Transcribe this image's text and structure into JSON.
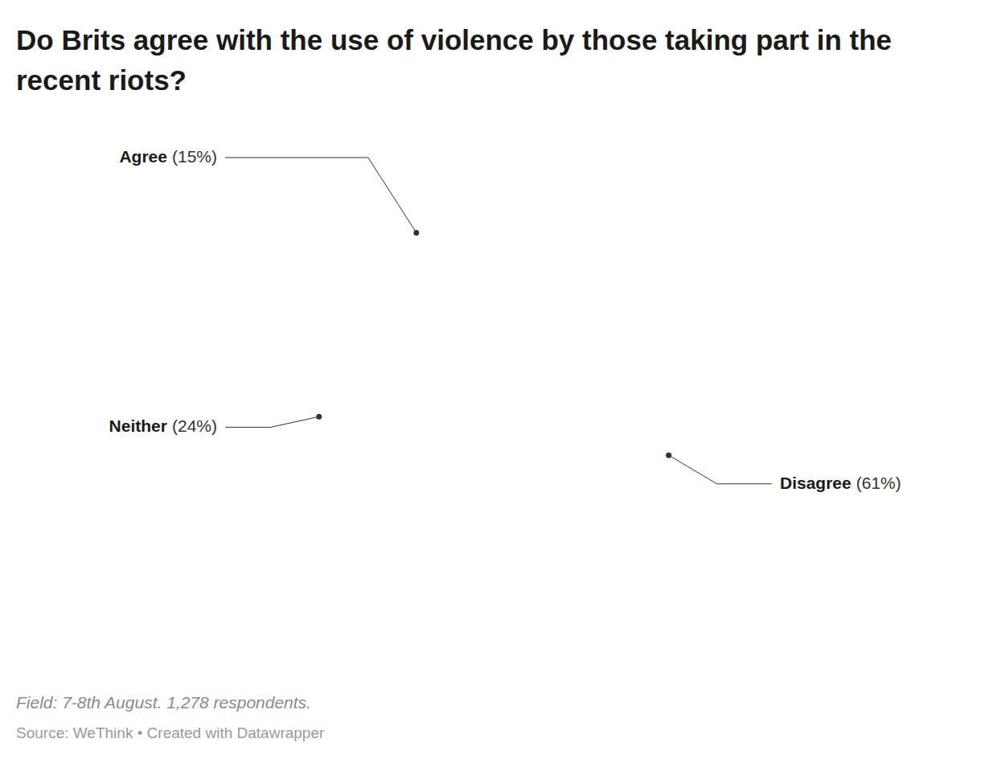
{
  "chart_data": {
    "type": "pie",
    "title": "Do Brits agree with the use of violence by those taking part in the recent riots?",
    "categories": [
      "Disagree",
      "Neither",
      "Agree"
    ],
    "values": [
      61,
      24,
      15
    ],
    "value_labels": [
      "(61%)",
      "(24%)",
      "(15%)"
    ],
    "colors": [
      "#eb3c22",
      "#fdca78",
      "#009452"
    ],
    "data_labels": true,
    "note": "Field: 7-8th August. 1,278 respondents.",
    "source": "Source: WeThink • Created with Datawrapper"
  }
}
